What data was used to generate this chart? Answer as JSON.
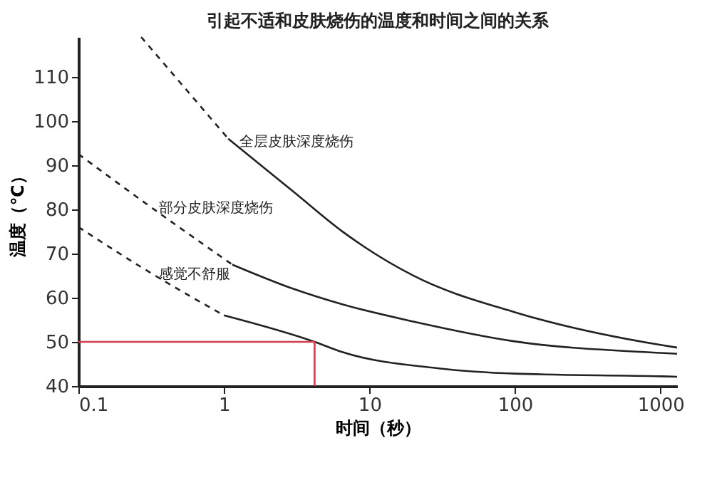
{
  "chart_data": {
    "type": "line",
    "title": "引起不适和皮肤烧伤的温度和时间之间的关系",
    "xlabel": "时间（秒）",
    "ylabel": "温度（℃）",
    "log": "x",
    "xlim": [
      0.1,
      1300
    ],
    "xticks": [
      0.1,
      1,
      10,
      100,
      1000
    ],
    "ylim": [
      40,
      119
    ],
    "yticks": [
      40,
      50,
      60,
      70,
      80,
      90,
      100,
      110
    ],
    "grid": false,
    "marker": "none",
    "series": [
      {
        "name": "全层皮肤深度烧伤",
        "color": "#222222",
        "line_style": "dashed",
        "x": [
          0.27,
          1.07
        ],
        "values": [
          119,
          96
        ]
      },
      {
        "color": "#222222",
        "line_style": "solid",
        "x": [
          1.07,
          3,
          6.5,
          20,
          100,
          1000,
          1300
        ],
        "values": [
          96,
          84,
          75,
          65,
          56.7,
          49.3,
          48.7
        ]
      },
      {
        "name": "部分皮肤深度烧伤",
        "color": "#222222",
        "line_style": "dashed",
        "x": [
          0.1,
          0.3,
          1.14
        ],
        "values": [
          92.5,
          81,
          67.5
        ]
      },
      {
        "color": "#222222",
        "line_style": "solid",
        "x": [
          1.14,
          3,
          6.5,
          20,
          100,
          1000,
          1300
        ],
        "values": [
          67.5,
          62,
          58.5,
          54.6,
          50.1,
          47.5,
          47.3
        ]
      },
      {
        "name": "感觉不舒服",
        "color": "#222222",
        "line_style": "dashed",
        "x": [
          0.1,
          0.3,
          1
        ],
        "values": [
          76,
          66,
          56
        ]
      },
      {
        "color": "#222222",
        "line_style": "solid",
        "x": [
          1,
          4.2,
          6.5,
          30,
          100,
          1000,
          1300
        ],
        "values": [
          56,
          50,
          47.7,
          44,
          42.8,
          42.2,
          42.1
        ]
      },
      {
        "color": "#d04050",
        "line_style": "solid",
        "x": [
          0.1,
          4.2,
          4.2
        ],
        "values": [
          50,
          50,
          40
        ]
      }
    ]
  }
}
